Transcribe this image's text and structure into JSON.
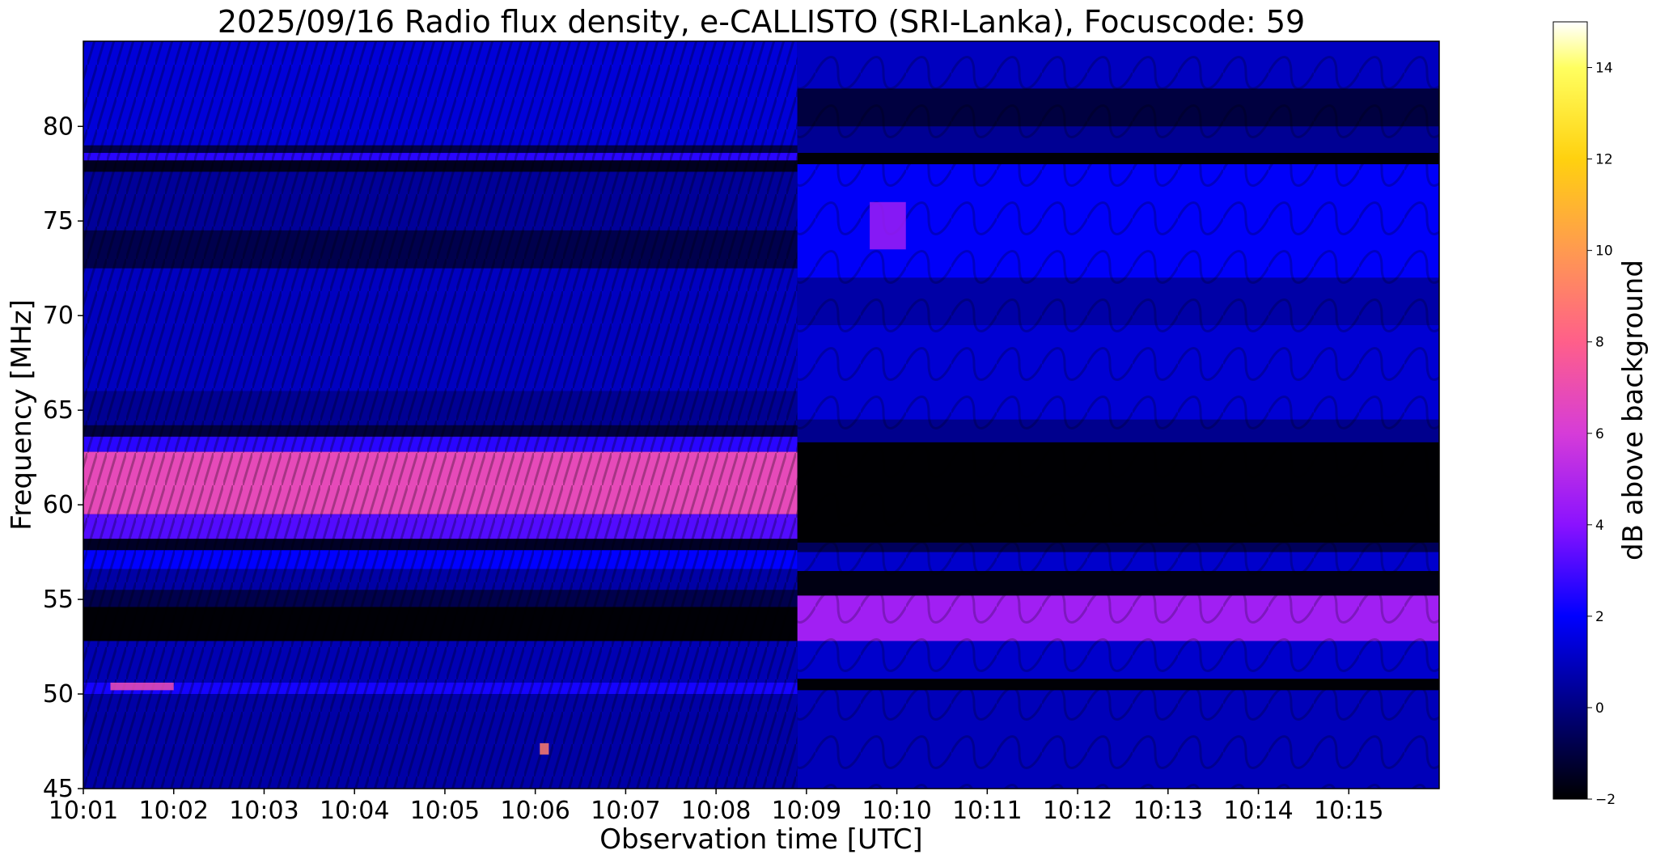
{
  "chart_data": {
    "type": "heatmap",
    "title": "2025/09/16  Radio flux density, e-CALLISTO (SRI-Lanka), Focuscode: 59",
    "xlabel": "Observation time [UTC]",
    "ylabel": "Frequency [MHz]",
    "colorbar_label": "dB above background",
    "colormap": "gnuplot2",
    "grid": false,
    "x_ticks": [
      "10:01",
      "10:02",
      "10:03",
      "10:04",
      "10:05",
      "10:06",
      "10:07",
      "10:08",
      "10:09",
      "10:10",
      "10:11",
      "10:12",
      "10:13",
      "10:14",
      "10:15"
    ],
    "x_range_minutes": [
      0,
      15
    ],
    "y_ticks": [
      45,
      50,
      55,
      60,
      65,
      70,
      75,
      80
    ],
    "ylim": [
      45,
      84.5
    ],
    "colorbar_ticks": [
      -2,
      0,
      2,
      4,
      6,
      8,
      10,
      12,
      14
    ],
    "colorbar_range": [
      -2,
      15
    ],
    "segments": [
      {
        "name": "",
        "time_range_minutes": [
          0,
          7.9
        ],
        "bands": [
          {
            "from": 79,
            "to": 84.5,
            "db": 1.4
          },
          {
            "from": 78.2,
            "to": 78.6,
            "db": 2.6
          },
          {
            "from": 77.6,
            "to": 78.2,
            "db": -1.5
          },
          {
            "from": 74.5,
            "to": 77.6,
            "db": 0.4
          },
          {
            "from": 72.5,
            "to": 74.5,
            "db": -0.8
          },
          {
            "from": 66,
            "to": 72.5,
            "db": 1.0
          },
          {
            "from": 64.2,
            "to": 66,
            "db": 0.3
          },
          {
            "from": 63.6,
            "to": 64.2,
            "db": -1.0
          },
          {
            "from": 62.8,
            "to": 63.6,
            "db": 2.6
          },
          {
            "from": 59.5,
            "to": 62.8,
            "db": 6.8
          },
          {
            "from": 58.2,
            "to": 59.5,
            "db": 3.2
          },
          {
            "from": 57.6,
            "to": 58.2,
            "db": -1.4
          },
          {
            "from": 56.6,
            "to": 57.6,
            "db": 2.0
          },
          {
            "from": 55.5,
            "to": 56.6,
            "db": 0.6
          },
          {
            "from": 54.6,
            "to": 55.5,
            "db": -0.8
          },
          {
            "from": 52.8,
            "to": 54.6,
            "db": -1.9
          },
          {
            "from": 50.6,
            "to": 52.8,
            "db": 0.8
          },
          {
            "from": 50.0,
            "to": 50.6,
            "db": 2.3
          },
          {
            "from": 45,
            "to": 50.0,
            "db": 0.6
          }
        ]
      },
      {
        "name": "",
        "time_range_minutes": [
          7.9,
          15
        ],
        "bands": [
          {
            "from": 82,
            "to": 84.5,
            "db": 1.0
          },
          {
            "from": 80,
            "to": 82,
            "db": -1.0
          },
          {
            "from": 78.6,
            "to": 80,
            "db": 0.3
          },
          {
            "from": 78.0,
            "to": 78.6,
            "db": -1.9
          },
          {
            "from": 72,
            "to": 78.0,
            "db": 1.9
          },
          {
            "from": 69.5,
            "to": 72,
            "db": 0.6
          },
          {
            "from": 64.5,
            "to": 69.5,
            "db": 1.3
          },
          {
            "from": 63.3,
            "to": 64.5,
            "db": 0.2
          },
          {
            "from": 58.0,
            "to": 63.3,
            "db": -1.95
          },
          {
            "from": 57.5,
            "to": 58.0,
            "db": -0.6
          },
          {
            "from": 56.5,
            "to": 57.5,
            "db": 1.2
          },
          {
            "from": 55.2,
            "to": 56.5,
            "db": -1.7
          },
          {
            "from": 52.8,
            "to": 55.2,
            "db": 4.6
          },
          {
            "from": 50.8,
            "to": 52.8,
            "db": 1.2
          },
          {
            "from": 50.2,
            "to": 50.8,
            "db": -1.9
          },
          {
            "from": 45,
            "to": 50.2,
            "db": 0.9
          }
        ]
      }
    ],
    "hotspots": [
      {
        "time_minutes": 0.3,
        "freq_from": 50.2,
        "freq_to": 50.6,
        "time_width": 0.7,
        "db": 7.0
      },
      {
        "time_minutes": 5.05,
        "freq_from": 46.8,
        "freq_to": 47.4,
        "time_width": 0.1,
        "db": 9.0
      },
      {
        "time_minutes": 8.7,
        "freq_from": 73.5,
        "freq_to": 76.0,
        "time_width": 0.4,
        "db": 4.5
      }
    ]
  }
}
